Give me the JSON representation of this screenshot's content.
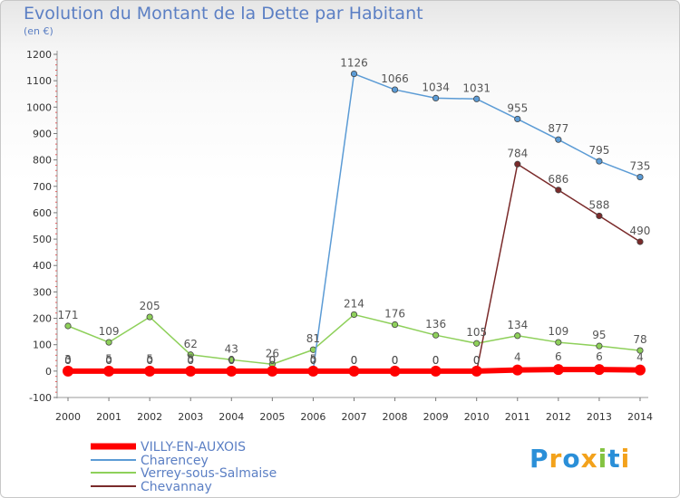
{
  "chart_data": {
    "type": "line",
    "title": "Evolution du Montant de la Dette par Habitant",
    "subtitle": "(en €)",
    "x": [
      "2000",
      "2001",
      "2002",
      "2003",
      "2004",
      "2005",
      "2006",
      "2007",
      "2008",
      "2009",
      "2010",
      "2011",
      "2012",
      "2013",
      "2014"
    ],
    "ylim": [
      -100,
      1200
    ],
    "yticks": [
      -100,
      0,
      100,
      200,
      300,
      400,
      500,
      600,
      700,
      800,
      900,
      1000,
      1100,
      1200
    ],
    "grid": false,
    "legend_position": "bottom-left",
    "series": [
      {
        "name": "VILLY-EN-AUXOIS",
        "color": "#ff0000",
        "values": [
          0,
          0,
          0,
          0,
          0,
          0,
          0,
          0,
          0,
          0,
          0,
          4,
          6,
          6,
          4
        ],
        "labels": [
          "0",
          "0",
          "0",
          "0",
          "0",
          "0",
          "0",
          "0",
          "0",
          "0",
          "0",
          "4",
          "6",
          "6",
          "4"
        ]
      },
      {
        "name": "Charencey",
        "color": "#5b9bd5",
        "values": [
          3,
          5,
          5,
          5,
          2,
          0,
          5,
          1126,
          1066,
          1034,
          1031,
          955,
          877,
          795,
          735
        ],
        "labels": [
          "3",
          "5",
          "5",
          "5",
          "",
          "",
          "5",
          "1126",
          "1066",
          "1034",
          "1031",
          "955",
          "877",
          "795",
          "735"
        ]
      },
      {
        "name": "Verrey-sous-Salmaise",
        "color": "#8ed05a",
        "values": [
          171,
          109,
          205,
          62,
          43,
          26,
          81,
          214,
          176,
          136,
          105,
          134,
          109,
          95,
          78
        ],
        "labels": [
          "171",
          "109",
          "205",
          "62",
          "43",
          "26",
          "81",
          "214",
          "176",
          "136",
          "105",
          "134",
          "109",
          "95",
          "78"
        ]
      },
      {
        "name": "Chevannay",
        "color": "#7a2a2a",
        "values": [
          0,
          0,
          0,
          0,
          0,
          0,
          0,
          0,
          0,
          0,
          0,
          784,
          686,
          588,
          490
        ],
        "labels": [
          "0",
          "0",
          "0",
          "0",
          "0",
          "0",
          "0",
          "0",
          "0",
          "0",
          "0",
          "784",
          "686",
          "588",
          "490"
        ]
      }
    ]
  },
  "logo": {
    "letters": [
      "P",
      "r",
      "o",
      "x",
      "i",
      "t",
      "i"
    ]
  }
}
